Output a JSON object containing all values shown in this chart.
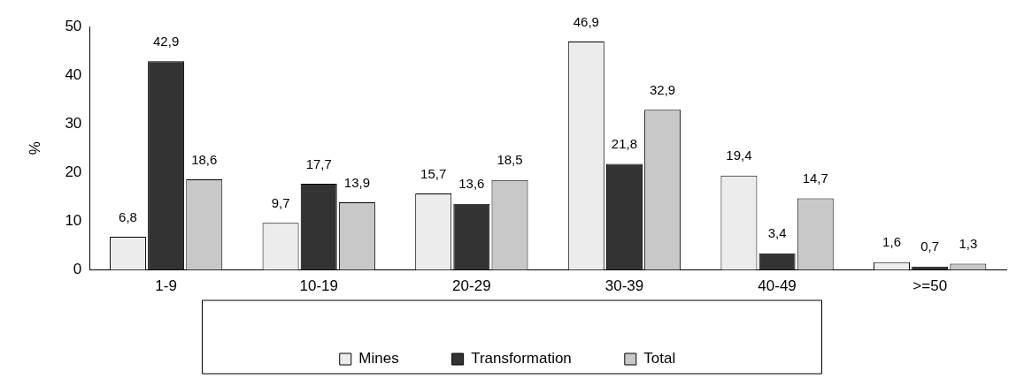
{
  "chart_data": {
    "type": "bar",
    "ylabel": "%",
    "categories": [
      "1-9",
      "10-19",
      "20-29",
      "30-39",
      "40-49",
      ">=50"
    ],
    "series": [
      {
        "name": "Mines",
        "color": "#ececec",
        "values": [
          6.8,
          9.7,
          15.7,
          46.9,
          19.4,
          1.6
        ],
        "value_labels": [
          "6,8",
          "9,7",
          "15,7",
          "46,9",
          "19,4",
          "1,6"
        ]
      },
      {
        "name": "Transformation",
        "color": "#333333",
        "values": [
          42.9,
          17.7,
          13.6,
          21.8,
          3.4,
          0.7
        ],
        "value_labels": [
          "42,9",
          "17,7",
          "13,6",
          "21,8",
          "3,4",
          "0,7"
        ]
      },
      {
        "name": "Total",
        "color": "#c8c8c8",
        "values": [
          18.6,
          13.9,
          18.5,
          32.9,
          14.7,
          1.3
        ],
        "value_labels": [
          "18,6",
          "13,9",
          "18,5",
          "32,9",
          "14,7",
          "1,3"
        ]
      }
    ],
    "ylim": [
      0,
      50
    ],
    "yticks": [
      0,
      10,
      20,
      30,
      40,
      50
    ],
    "grid": false,
    "legend": "bottom"
  }
}
